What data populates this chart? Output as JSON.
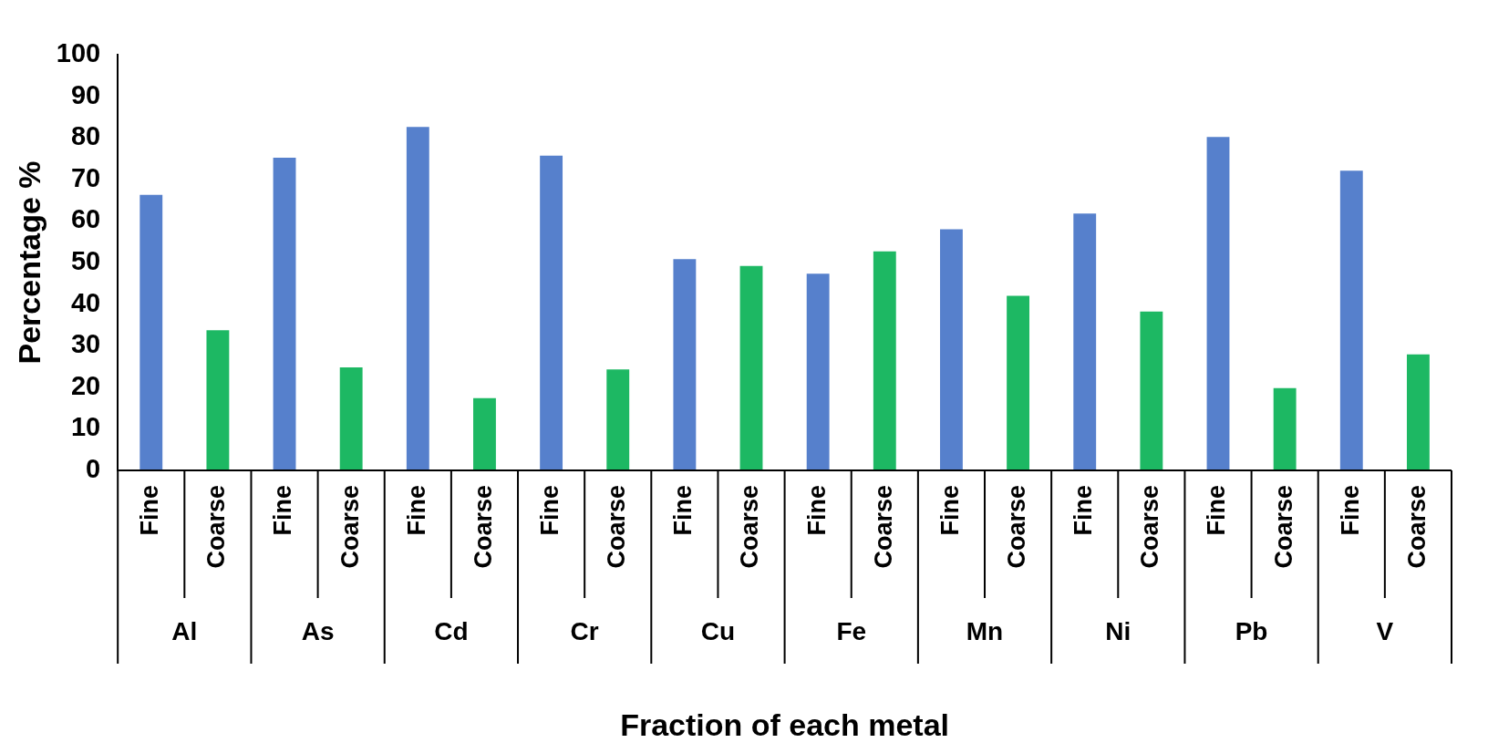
{
  "chart_data": {
    "type": "bar",
    "xlabel": "Fraction of each metal",
    "ylabel": "Percentage %",
    "categories": [
      "Al",
      "As",
      "Cd",
      "Cr",
      "Cu",
      "Fe",
      "Mn",
      "Ni",
      "Pb",
      "V"
    ],
    "series": [
      {
        "name": "Fine",
        "color": "#5680cc",
        "values": [
          66.3,
          75.2,
          82.6,
          75.7,
          50.8,
          47.3,
          58,
          61.8,
          80.2,
          72.1
        ]
      },
      {
        "name": "Coarse",
        "color": "#1db863",
        "values": [
          33.7,
          24.8,
          17.4,
          24.3,
          49.2,
          52.7,
          42,
          38.2,
          19.8,
          27.9
        ]
      }
    ],
    "ylim": [
      0,
      100
    ],
    "yticks": [
      0,
      10,
      20,
      30,
      40,
      50,
      60,
      70,
      80,
      90,
      100
    ],
    "grid": false,
    "legend": false
  }
}
